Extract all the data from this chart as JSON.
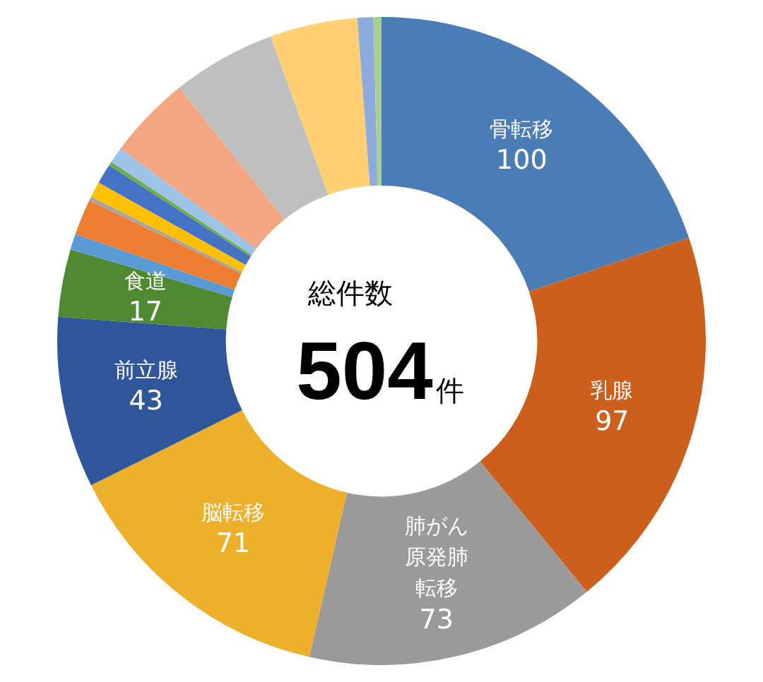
{
  "chart_data": {
    "type": "donut",
    "categories": [
      "骨転移",
      "乳腺",
      "肺がん原発肺転移",
      "脳転移",
      "前立腺",
      "食道",
      null,
      null,
      null,
      null,
      null,
      null,
      null,
      null,
      null,
      null,
      null,
      null
    ],
    "values": [
      100,
      97,
      73,
      71,
      43,
      17,
      4,
      9,
      1,
      4,
      5,
      1,
      4,
      21,
      26,
      22,
      4,
      2
    ],
    "value_labels": [
      "100",
      "97",
      "73",
      "71",
      "43",
      "17",
      null,
      null,
      null,
      null,
      null,
      null,
      null,
      null,
      null,
      null,
      null,
      null
    ],
    "colors": [
      "#4a7db5",
      "#cc5f1c",
      "#9a9a9a",
      "#eeb02a",
      "#2f559a",
      "#4f8a32",
      "#5b9bd5",
      "#ed7d31",
      "#a5a5a5",
      "#ffc000",
      "#4472c4",
      "#70ad47",
      "#9dc3e6",
      "#f4a582",
      "#bfbfbf",
      "#ffd072",
      "#8faadc",
      "#a9d18e"
    ],
    "annotations": [
      "総件数",
      "504",
      "件"
    ],
    "legend": false
  }
}
